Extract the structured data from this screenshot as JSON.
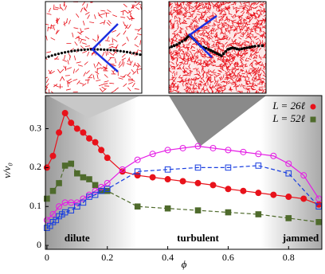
{
  "chart_data": {
    "type": "line",
    "x_label": "ϕ",
    "y_label": "v/v₀",
    "xlim": [
      -0.005,
      0.91
    ],
    "ylim": [
      -0.01,
      0.385
    ],
    "xticks": [
      0,
      0.2,
      0.4,
      0.6,
      0.8
    ],
    "yticks": [
      0,
      0.1,
      0.2,
      0.3
    ],
    "legend_position": "upper right",
    "region_labels": [
      "dilute",
      "turbulent",
      "jammed"
    ],
    "series": [
      {
        "name": "L = 26ℓ",
        "color": "#e8121b",
        "marker": "circle",
        "filled": true,
        "line_style": "solid",
        "x": [
          0,
          0.02,
          0.04,
          0.06,
          0.08,
          0.1,
          0.12,
          0.14,
          0.16,
          0.18,
          0.2,
          0.25,
          0.3,
          0.35,
          0.4,
          0.45,
          0.5,
          0.55,
          0.6,
          0.65,
          0.7,
          0.75,
          0.8,
          0.85,
          0.9
        ],
        "values": [
          0.2,
          0.23,
          0.29,
          0.34,
          0.315,
          0.3,
          0.29,
          0.275,
          0.265,
          0.245,
          0.225,
          0.19,
          0.18,
          0.175,
          0.17,
          0.165,
          0.16,
          0.155,
          0.145,
          0.14,
          0.135,
          0.13,
          0.125,
          0.12,
          0.105
        ]
      },
      {
        "name": "L = 52ℓ",
        "color": "#4f6b2c",
        "marker": "square",
        "filled": true,
        "line_style": "dashed",
        "x": [
          0,
          0.02,
          0.04,
          0.06,
          0.08,
          0.1,
          0.12,
          0.14,
          0.16,
          0.18,
          0.2,
          0.3,
          0.4,
          0.5,
          0.6,
          0.7,
          0.8,
          0.9
        ],
        "values": [
          0.12,
          0.14,
          0.16,
          0.205,
          0.21,
          0.185,
          0.175,
          0.17,
          0.155,
          0.14,
          0.14,
          0.1,
          0.095,
          0.09,
          0.085,
          0.08,
          0.07,
          0.06
        ]
      },
      {
        "color": "#e51ce5",
        "marker": "circle",
        "filled": false,
        "line_style": "solid",
        "x": [
          0,
          0.02,
          0.04,
          0.06,
          0.08,
          0.1,
          0.12,
          0.14,
          0.16,
          0.18,
          0.2,
          0.25,
          0.3,
          0.35,
          0.4,
          0.45,
          0.5,
          0.55,
          0.6,
          0.65,
          0.7,
          0.75,
          0.8,
          0.85,
          0.9
        ],
        "values": [
          0.065,
          0.08,
          0.1,
          0.11,
          0.11,
          0.11,
          0.12,
          0.13,
          0.14,
          0.15,
          0.16,
          0.195,
          0.22,
          0.235,
          0.245,
          0.25,
          0.255,
          0.25,
          0.245,
          0.24,
          0.235,
          0.23,
          0.21,
          0.18,
          0.12
        ]
      },
      {
        "color": "#1a3fe0",
        "marker": "square",
        "filled": false,
        "line_style": "dashed",
        "x": [
          0,
          0.01,
          0.02,
          0.03,
          0.04,
          0.05,
          0.06,
          0.08,
          0.1,
          0.12,
          0.14,
          0.16,
          0.18,
          0.2,
          0.3,
          0.4,
          0.5,
          0.6,
          0.7,
          0.8,
          0.9
        ],
        "values": [
          0.045,
          0.05,
          0.06,
          0.065,
          0.075,
          0.08,
          0.085,
          0.09,
          0.1,
          0.11,
          0.125,
          0.13,
          0.14,
          0.145,
          0.19,
          0.195,
          0.2,
          0.2,
          0.205,
          0.185,
          0.1
        ]
      }
    ]
  }
}
